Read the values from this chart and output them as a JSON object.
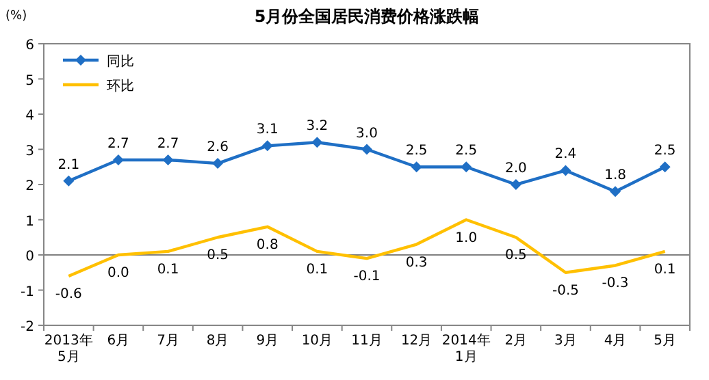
{
  "chart_data": {
    "type": "line",
    "title": "5月份全国居民消费价格涨跌幅",
    "ylabel": "(%)",
    "categories": [
      "2013年\n5月",
      "6月",
      "7月",
      "8月",
      "9月",
      "10月",
      "11月",
      "12月",
      "2014年\n1月",
      "2月",
      "3月",
      "4月",
      "5月"
    ],
    "series": [
      {
        "name": "同比",
        "color": "#1f6fc5",
        "marker": "diamond",
        "values": [
          2.1,
          2.7,
          2.7,
          2.6,
          3.1,
          3.2,
          3.0,
          2.5,
          2.5,
          2.0,
          2.4,
          1.8,
          2.5
        ],
        "value_labels": [
          "2.1",
          "2.7",
          "2.7",
          "2.6",
          "3.1",
          "3.2",
          "3.0",
          "2.5",
          "2.5",
          "2.0",
          "2.4",
          "1.8",
          "2.5"
        ]
      },
      {
        "name": "环比",
        "color": "#ffc000",
        "marker": "none",
        "values": [
          -0.6,
          0.0,
          0.1,
          0.5,
          0.8,
          0.1,
          -0.1,
          0.3,
          1.0,
          0.5,
          -0.5,
          -0.3,
          0.1
        ],
        "value_labels": [
          "-0.6",
          "0.0",
          "0.1",
          "0.5",
          "0.8",
          "0.1",
          "-0.1",
          "0.3",
          "1.0",
          "0.5",
          "-0.5",
          "-0.3",
          "0.1"
        ]
      }
    ],
    "ylim": [
      -2,
      6
    ],
    "yticks": [
      -2,
      -1,
      0,
      1,
      2,
      3,
      4,
      5,
      6
    ],
    "ref_lines": [
      {
        "axis": "y",
        "value": 0,
        "color": "#808080"
      }
    ],
    "legend": "top left",
    "grid": false
  }
}
